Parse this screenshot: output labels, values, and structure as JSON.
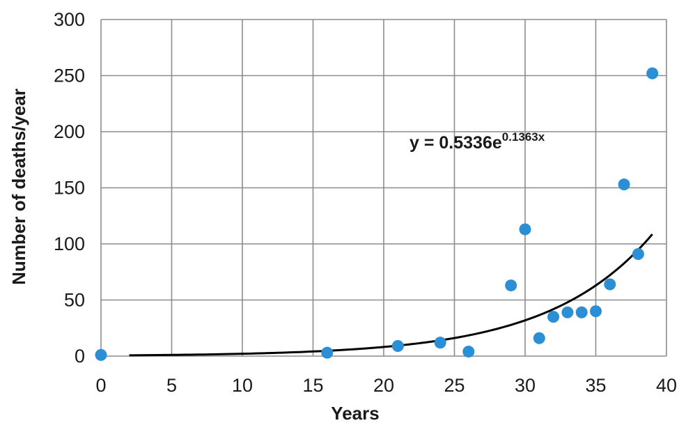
{
  "chart_data": {
    "type": "scatter",
    "title": "",
    "xlabel": "Years",
    "ylabel": "Number of deaths/year",
    "xlim": [
      0,
      40
    ],
    "ylim": [
      0,
      300
    ],
    "x_ticks": [
      0,
      5,
      10,
      15,
      20,
      25,
      30,
      35,
      40
    ],
    "y_ticks": [
      0,
      50,
      100,
      150,
      200,
      250,
      300
    ],
    "grid": true,
    "legend": "none",
    "point_color": "#2b8fd6",
    "trendline_color": "#000000",
    "series": [
      {
        "x": [
          0,
          16,
          21,
          24,
          26,
          29,
          30,
          31,
          32,
          33,
          34,
          35,
          36,
          37,
          38,
          39
        ],
        "y": [
          1,
          3,
          9,
          12,
          4,
          63,
          113,
          16,
          35,
          39,
          39,
          40,
          64,
          153,
          91,
          252
        ]
      }
    ],
    "trendline": {
      "type": "exponential",
      "a": 0.5336,
      "b": 0.1363,
      "x_range": [
        2,
        39
      ],
      "equation_prefix": "y = 0.5336e",
      "equation_exponent": "0.1363x"
    }
  }
}
